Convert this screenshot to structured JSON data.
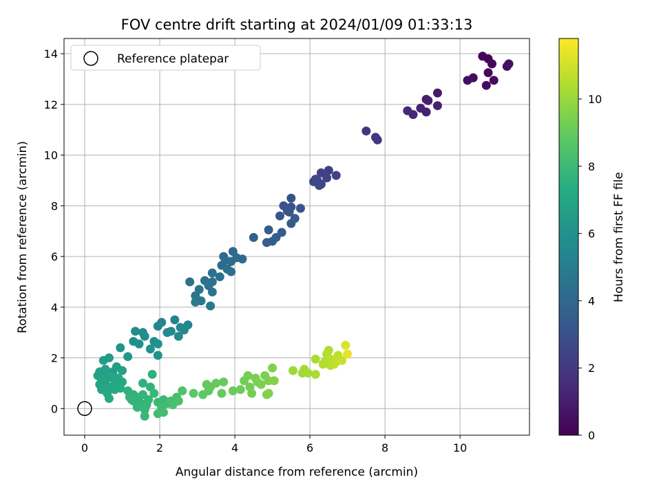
{
  "chart_data": {
    "type": "scatter",
    "title": "FOV centre drift starting at 2024/01/09 01:33:13",
    "xlabel": "Angular distance from reference (arcmin)",
    "ylabel": "Rotation from reference (arcmin)",
    "xlim": [
      -0.55,
      11.85
    ],
    "ylim": [
      -1.05,
      14.6
    ],
    "xticks": [
      0,
      2,
      4,
      6,
      8,
      10
    ],
    "yticks": [
      0,
      2,
      4,
      6,
      8,
      10,
      12,
      14
    ],
    "grid": true,
    "legend": {
      "position": "top-left",
      "entries": [
        "Reference platepar"
      ]
    },
    "reference_point": {
      "x": 0,
      "y": 0
    },
    "colorbar": {
      "label": "Hours from first FF file",
      "min": 0,
      "max": 11.8,
      "ticks": [
        0,
        2,
        4,
        6,
        8,
        10
      ],
      "colormap": "viridis"
    },
    "series": [
      {
        "values": [
          [
            10.6,
            13.9,
            0.1
          ],
          [
            10.75,
            13.8,
            0.15
          ],
          [
            10.85,
            13.6,
            0.2
          ],
          [
            10.75,
            13.25,
            0.25
          ],
          [
            10.9,
            12.95,
            0.3
          ],
          [
            10.7,
            12.75,
            0.35
          ],
          [
            10.2,
            12.95,
            0.4
          ],
          [
            10.35,
            13.05,
            0.45
          ],
          [
            11.25,
            13.5,
            0.5
          ],
          [
            11.3,
            13.6,
            0.55
          ],
          [
            9.4,
            12.45,
            0.9
          ],
          [
            9.1,
            12.2,
            1.0
          ],
          [
            9.4,
            11.95,
            1.1
          ],
          [
            9.1,
            11.7,
            1.15
          ],
          [
            8.95,
            11.85,
            1.2
          ],
          [
            8.75,
            11.6,
            1.3
          ],
          [
            8.6,
            11.75,
            1.35
          ],
          [
            9.15,
            12.15,
            1.05
          ],
          [
            7.5,
            10.95,
            1.8
          ],
          [
            7.75,
            10.7,
            1.85
          ],
          [
            7.8,
            10.6,
            1.9
          ],
          [
            6.5,
            9.4,
            2.3
          ],
          [
            6.3,
            9.3,
            2.35
          ],
          [
            6.7,
            9.2,
            2.4
          ],
          [
            6.2,
            9.0,
            2.45
          ],
          [
            6.1,
            8.95,
            2.5
          ],
          [
            6.3,
            8.85,
            2.55
          ],
          [
            6.25,
            8.8,
            2.6
          ],
          [
            6.15,
            9.05,
            2.5
          ],
          [
            6.45,
            9.1,
            2.4
          ],
          [
            5.5,
            8.3,
            3.0
          ],
          [
            5.3,
            8.0,
            3.05
          ],
          [
            5.5,
            7.95,
            3.1
          ],
          [
            5.75,
            7.9,
            3.15
          ],
          [
            5.45,
            7.75,
            3.2
          ],
          [
            5.2,
            7.6,
            3.25
          ],
          [
            5.6,
            7.5,
            3.3
          ],
          [
            5.5,
            7.3,
            3.35
          ],
          [
            5.25,
            6.95,
            3.4
          ],
          [
            4.9,
            7.05,
            3.45
          ],
          [
            5.1,
            6.75,
            3.5
          ],
          [
            4.85,
            6.55,
            3.55
          ],
          [
            5.0,
            6.6,
            3.55
          ],
          [
            4.5,
            6.75,
            3.6
          ],
          [
            5.4,
            7.8,
            3.1
          ],
          [
            3.95,
            6.2,
            4.0
          ],
          [
            3.7,
            6.0,
            4.05
          ],
          [
            4.2,
            5.9,
            4.1
          ],
          [
            3.9,
            5.8,
            4.15
          ],
          [
            3.65,
            5.65,
            4.2
          ],
          [
            3.8,
            5.5,
            4.25
          ],
          [
            3.9,
            5.4,
            4.3
          ],
          [
            3.4,
            5.35,
            4.35
          ],
          [
            3.6,
            5.2,
            4.4
          ],
          [
            3.2,
            5.05,
            4.45
          ],
          [
            3.4,
            5.0,
            4.5
          ],
          [
            3.3,
            4.85,
            4.5
          ],
          [
            3.05,
            4.7,
            4.55
          ],
          [
            3.4,
            4.6,
            4.6
          ],
          [
            2.95,
            4.45,
            4.65
          ],
          [
            3.1,
            4.25,
            4.7
          ],
          [
            2.95,
            4.2,
            4.75
          ],
          [
            3.35,
            4.05,
            4.8
          ],
          [
            2.8,
            5.0,
            4.4
          ],
          [
            4.05,
            5.95,
            4.1
          ],
          [
            3.75,
            5.85,
            4.2
          ],
          [
            2.4,
            3.5,
            5.3
          ],
          [
            2.05,
            3.4,
            5.35
          ],
          [
            1.95,
            3.25,
            5.4
          ],
          [
            2.75,
            3.3,
            5.45
          ],
          [
            2.55,
            3.2,
            5.5
          ],
          [
            2.65,
            3.1,
            5.55
          ],
          [
            2.3,
            3.05,
            5.55
          ],
          [
            2.2,
            3.0,
            5.6
          ],
          [
            2.5,
            2.85,
            5.6
          ],
          [
            1.35,
            3.05,
            5.7
          ],
          [
            1.55,
            3.0,
            5.75
          ],
          [
            1.6,
            2.85,
            5.8
          ],
          [
            1.3,
            2.65,
            5.85
          ],
          [
            1.45,
            2.55,
            5.9
          ],
          [
            1.85,
            2.65,
            5.9
          ],
          [
            1.95,
            2.55,
            5.95
          ],
          [
            1.75,
            2.35,
            6.0
          ],
          [
            1.95,
            2.1,
            6.05
          ],
          [
            0.95,
            2.4,
            6.15
          ],
          [
            1.15,
            2.05,
            6.2
          ],
          [
            0.65,
            2.0,
            6.5
          ],
          [
            0.5,
            1.9,
            6.55
          ],
          [
            0.85,
            1.65,
            6.6
          ],
          [
            0.75,
            1.45,
            6.65
          ],
          [
            1.0,
            1.5,
            6.7
          ],
          [
            0.55,
            1.55,
            6.7
          ],
          [
            0.4,
            1.45,
            6.75
          ],
          [
            0.35,
            1.3,
            6.8
          ],
          [
            0.6,
            1.3,
            6.8
          ],
          [
            0.45,
            1.15,
            6.85
          ],
          [
            0.55,
            1.05,
            6.85
          ],
          [
            0.4,
            0.95,
            6.9
          ],
          [
            0.75,
            1.2,
            6.9
          ],
          [
            0.85,
            1.1,
            6.95
          ],
          [
            1.0,
            1.05,
            7.0
          ],
          [
            0.65,
            0.85,
            7.0
          ],
          [
            0.45,
            0.75,
            7.05
          ],
          [
            0.6,
            0.6,
            7.1
          ],
          [
            0.65,
            0.4,
            7.15
          ],
          [
            0.8,
            0.75,
            7.15
          ],
          [
            0.95,
            0.8,
            7.2
          ],
          [
            0.7,
            1.25,
            6.95
          ],
          [
            0.55,
            1.1,
            6.9
          ],
          [
            0.9,
            1.2,
            7.05
          ],
          [
            0.8,
            0.95,
            7.1
          ],
          [
            1.15,
            0.7,
            7.6
          ],
          [
            1.3,
            0.55,
            7.65
          ],
          [
            1.25,
            0.35,
            7.7
          ],
          [
            1.5,
            0.2,
            7.75
          ],
          [
            1.4,
            0.05,
            7.8
          ],
          [
            1.6,
            -0.05,
            7.85
          ],
          [
            1.2,
            0.45,
            7.7
          ],
          [
            1.55,
            0.55,
            7.75
          ],
          [
            1.7,
            0.35,
            7.8
          ],
          [
            1.65,
            0.15,
            7.85
          ],
          [
            1.55,
            1.0,
            7.6
          ],
          [
            1.75,
            0.85,
            7.65
          ],
          [
            1.8,
            1.35,
            7.6
          ],
          [
            1.85,
            0.6,
            7.9
          ],
          [
            1.95,
            0.25,
            7.95
          ],
          [
            2.1,
            0.35,
            8.0
          ],
          [
            2.2,
            0.2,
            8.05
          ],
          [
            2.05,
            0.05,
            8.1
          ],
          [
            1.95,
            -0.2,
            8.15
          ],
          [
            2.1,
            -0.15,
            8.2
          ],
          [
            2.3,
            0.3,
            8.25
          ],
          [
            2.45,
            0.45,
            8.3
          ],
          [
            2.35,
            0.15,
            8.35
          ],
          [
            2.5,
            0.3,
            8.4
          ],
          [
            2.6,
            0.7,
            8.45
          ],
          [
            1.6,
            -0.3,
            7.9
          ],
          [
            1.3,
            0.3,
            7.75
          ],
          [
            1.45,
            0.45,
            7.7
          ],
          [
            2.9,
            0.6,
            8.8
          ],
          [
            3.15,
            0.55,
            8.85
          ],
          [
            3.3,
            0.7,
            8.9
          ],
          [
            3.35,
            0.85,
            8.95
          ],
          [
            3.25,
            0.95,
            8.95
          ],
          [
            3.5,
            1.0,
            9.0
          ],
          [
            3.7,
            1.05,
            9.05
          ],
          [
            3.65,
            0.6,
            9.0
          ],
          [
            3.95,
            0.7,
            9.1
          ],
          [
            4.15,
            0.75,
            9.15
          ],
          [
            4.25,
            1.1,
            9.2
          ],
          [
            4.4,
            0.85,
            9.25
          ],
          [
            4.45,
            0.6,
            9.3
          ],
          [
            4.55,
            1.2,
            9.35
          ],
          [
            4.7,
            0.95,
            9.4
          ],
          [
            4.8,
            1.3,
            9.45
          ],
          [
            4.6,
            1.05,
            9.45
          ],
          [
            4.9,
            1.1,
            9.5
          ],
          [
            5.0,
            1.6,
            9.55
          ],
          [
            5.05,
            1.1,
            9.6
          ],
          [
            4.85,
            0.55,
            9.5
          ],
          [
            4.9,
            0.6,
            9.55
          ],
          [
            4.35,
            1.3,
            9.3
          ],
          [
            5.55,
            1.5,
            10.1
          ],
          [
            5.8,
            1.4,
            10.15
          ],
          [
            5.85,
            1.55,
            10.2
          ],
          [
            5.95,
            1.4,
            10.25
          ],
          [
            6.15,
            1.35,
            10.3
          ],
          [
            6.15,
            1.95,
            10.35
          ],
          [
            6.4,
            1.85,
            10.4
          ],
          [
            6.5,
            2.3,
            10.45
          ],
          [
            6.45,
            2.15,
            10.5
          ],
          [
            6.55,
            1.95,
            10.55
          ],
          [
            6.55,
            1.7,
            10.6
          ],
          [
            6.7,
            1.85,
            10.65
          ],
          [
            6.75,
            2.1,
            10.7
          ],
          [
            6.65,
            1.75,
            10.75
          ],
          [
            6.85,
            1.9,
            10.8
          ],
          [
            6.95,
            2.5,
            11.2
          ],
          [
            7.0,
            2.15,
            11.4
          ],
          [
            6.45,
            1.8,
            10.55
          ],
          [
            6.35,
            1.75,
            10.5
          ]
        ]
      }
    ]
  }
}
